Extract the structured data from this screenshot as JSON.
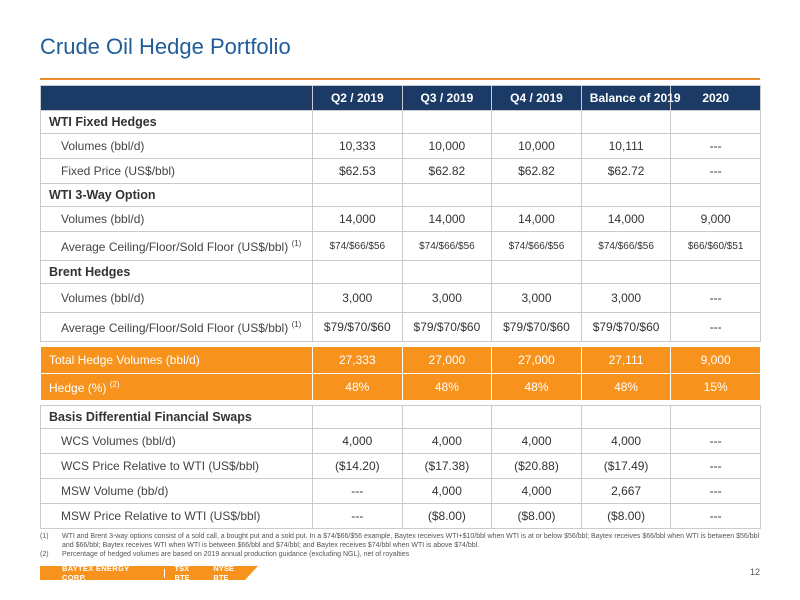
{
  "title": "Crude Oil Hedge Portfolio",
  "columns": [
    "Q2 / 2019",
    "Q3 / 2019",
    "Q4 / 2019",
    "Balance of 2019",
    "2020"
  ],
  "sections": [
    {
      "header": "WTI Fixed Hedges",
      "rows": [
        {
          "label": "Volumes (bbl/d)",
          "values": [
            "10,333",
            "10,000",
            "10,000",
            "10,111",
            "---"
          ]
        },
        {
          "label": "Fixed Price (US$/bbl)",
          "values": [
            "$62.53",
            "$62.82",
            "$62.82",
            "$62.72",
            "---"
          ]
        }
      ]
    },
    {
      "header": "WTI 3-Way Option",
      "rows": [
        {
          "label": "Volumes (bbl/d)",
          "values": [
            "14,000",
            "14,000",
            "14,000",
            "14,000",
            "9,000"
          ]
        },
        {
          "label": "Average Ceiling/Floor/Sold Floor (US$/bbl)",
          "sup": "(1)",
          "values": [
            "$74/$66/$56",
            "$74/$66/$56",
            "$74/$66/$56",
            "$74/$66/$56",
            "$66/$60/$51"
          ]
        }
      ]
    },
    {
      "header": "Brent Hedges",
      "rows": [
        {
          "label": "Volumes (bbl/d)",
          "values": [
            "3,000",
            "3,000",
            "3,000",
            "3,000",
            "---"
          ]
        },
        {
          "label": "Average Ceiling/Floor/Sold Floor (US$/bbl)",
          "sup": "(1)",
          "values": [
            "$79/$70/$60",
            "$79/$70/$60",
            "$79/$70/$60",
            "$79/$70/$60",
            "---"
          ]
        }
      ]
    }
  ],
  "totals": [
    {
      "label": "Total Hedge Volumes (bbl/d)",
      "values": [
        "27,333",
        "27,000",
        "27,000",
        "27,111",
        "9,000"
      ]
    },
    {
      "label": "Hedge (%)",
      "sup": "(2)",
      "values": [
        "48%",
        "48%",
        "48%",
        "48%",
        "15%"
      ]
    }
  ],
  "basis": {
    "header": "Basis Differential Financial Swaps",
    "rows": [
      {
        "label": "WCS Volumes (bbl/d)",
        "values": [
          "4,000",
          "4,000",
          "4,000",
          "4,000",
          "---"
        ]
      },
      {
        "label": "WCS Price Relative to WTI (US$/bbl)",
        "values": [
          "($14.20)",
          "($17.38)",
          "($20.88)",
          "($17.49)",
          "---"
        ]
      },
      {
        "label": "MSW Volume (bb/d)",
        "values": [
          "---",
          "4,000",
          "4,000",
          "2,667",
          "---"
        ]
      },
      {
        "label": "MSW Price Relative to WTI (US$/bbl)",
        "values": [
          "---",
          "($8.00)",
          "($8.00)",
          "($8.00)",
          "---"
        ]
      }
    ]
  },
  "notes": [
    {
      "num": "(1)",
      "text": "WTI and Brent 3-way options consist of a sold call, a bought put and a sold put. In a $74/$66/$56 example, Baytex receives WTI+$10/bbl when WTI is at or below $56/bbl; Baytex receives $66/bbl when WTI is between $56/bbl and $66/bbl; Baytex receives WTI when WTI is between $66/bbl and $74/bbl; and Baytex receives $74/bbl when WTI is above $74/bbl."
    },
    {
      "num": "(2)",
      "text": "Percentage of hedged volumes are based on 2019 annual production guidance (excluding NGL), net of royalties"
    }
  ],
  "footer": {
    "company": "BAYTEX ENERGY CORP.",
    "tsx": "TSX BTE",
    "nyse": "NYSE BTE",
    "page": "12"
  },
  "colors": {
    "title": "#1f5c99",
    "header_bg": "#1b3a66",
    "accent": "#f7931d"
  }
}
